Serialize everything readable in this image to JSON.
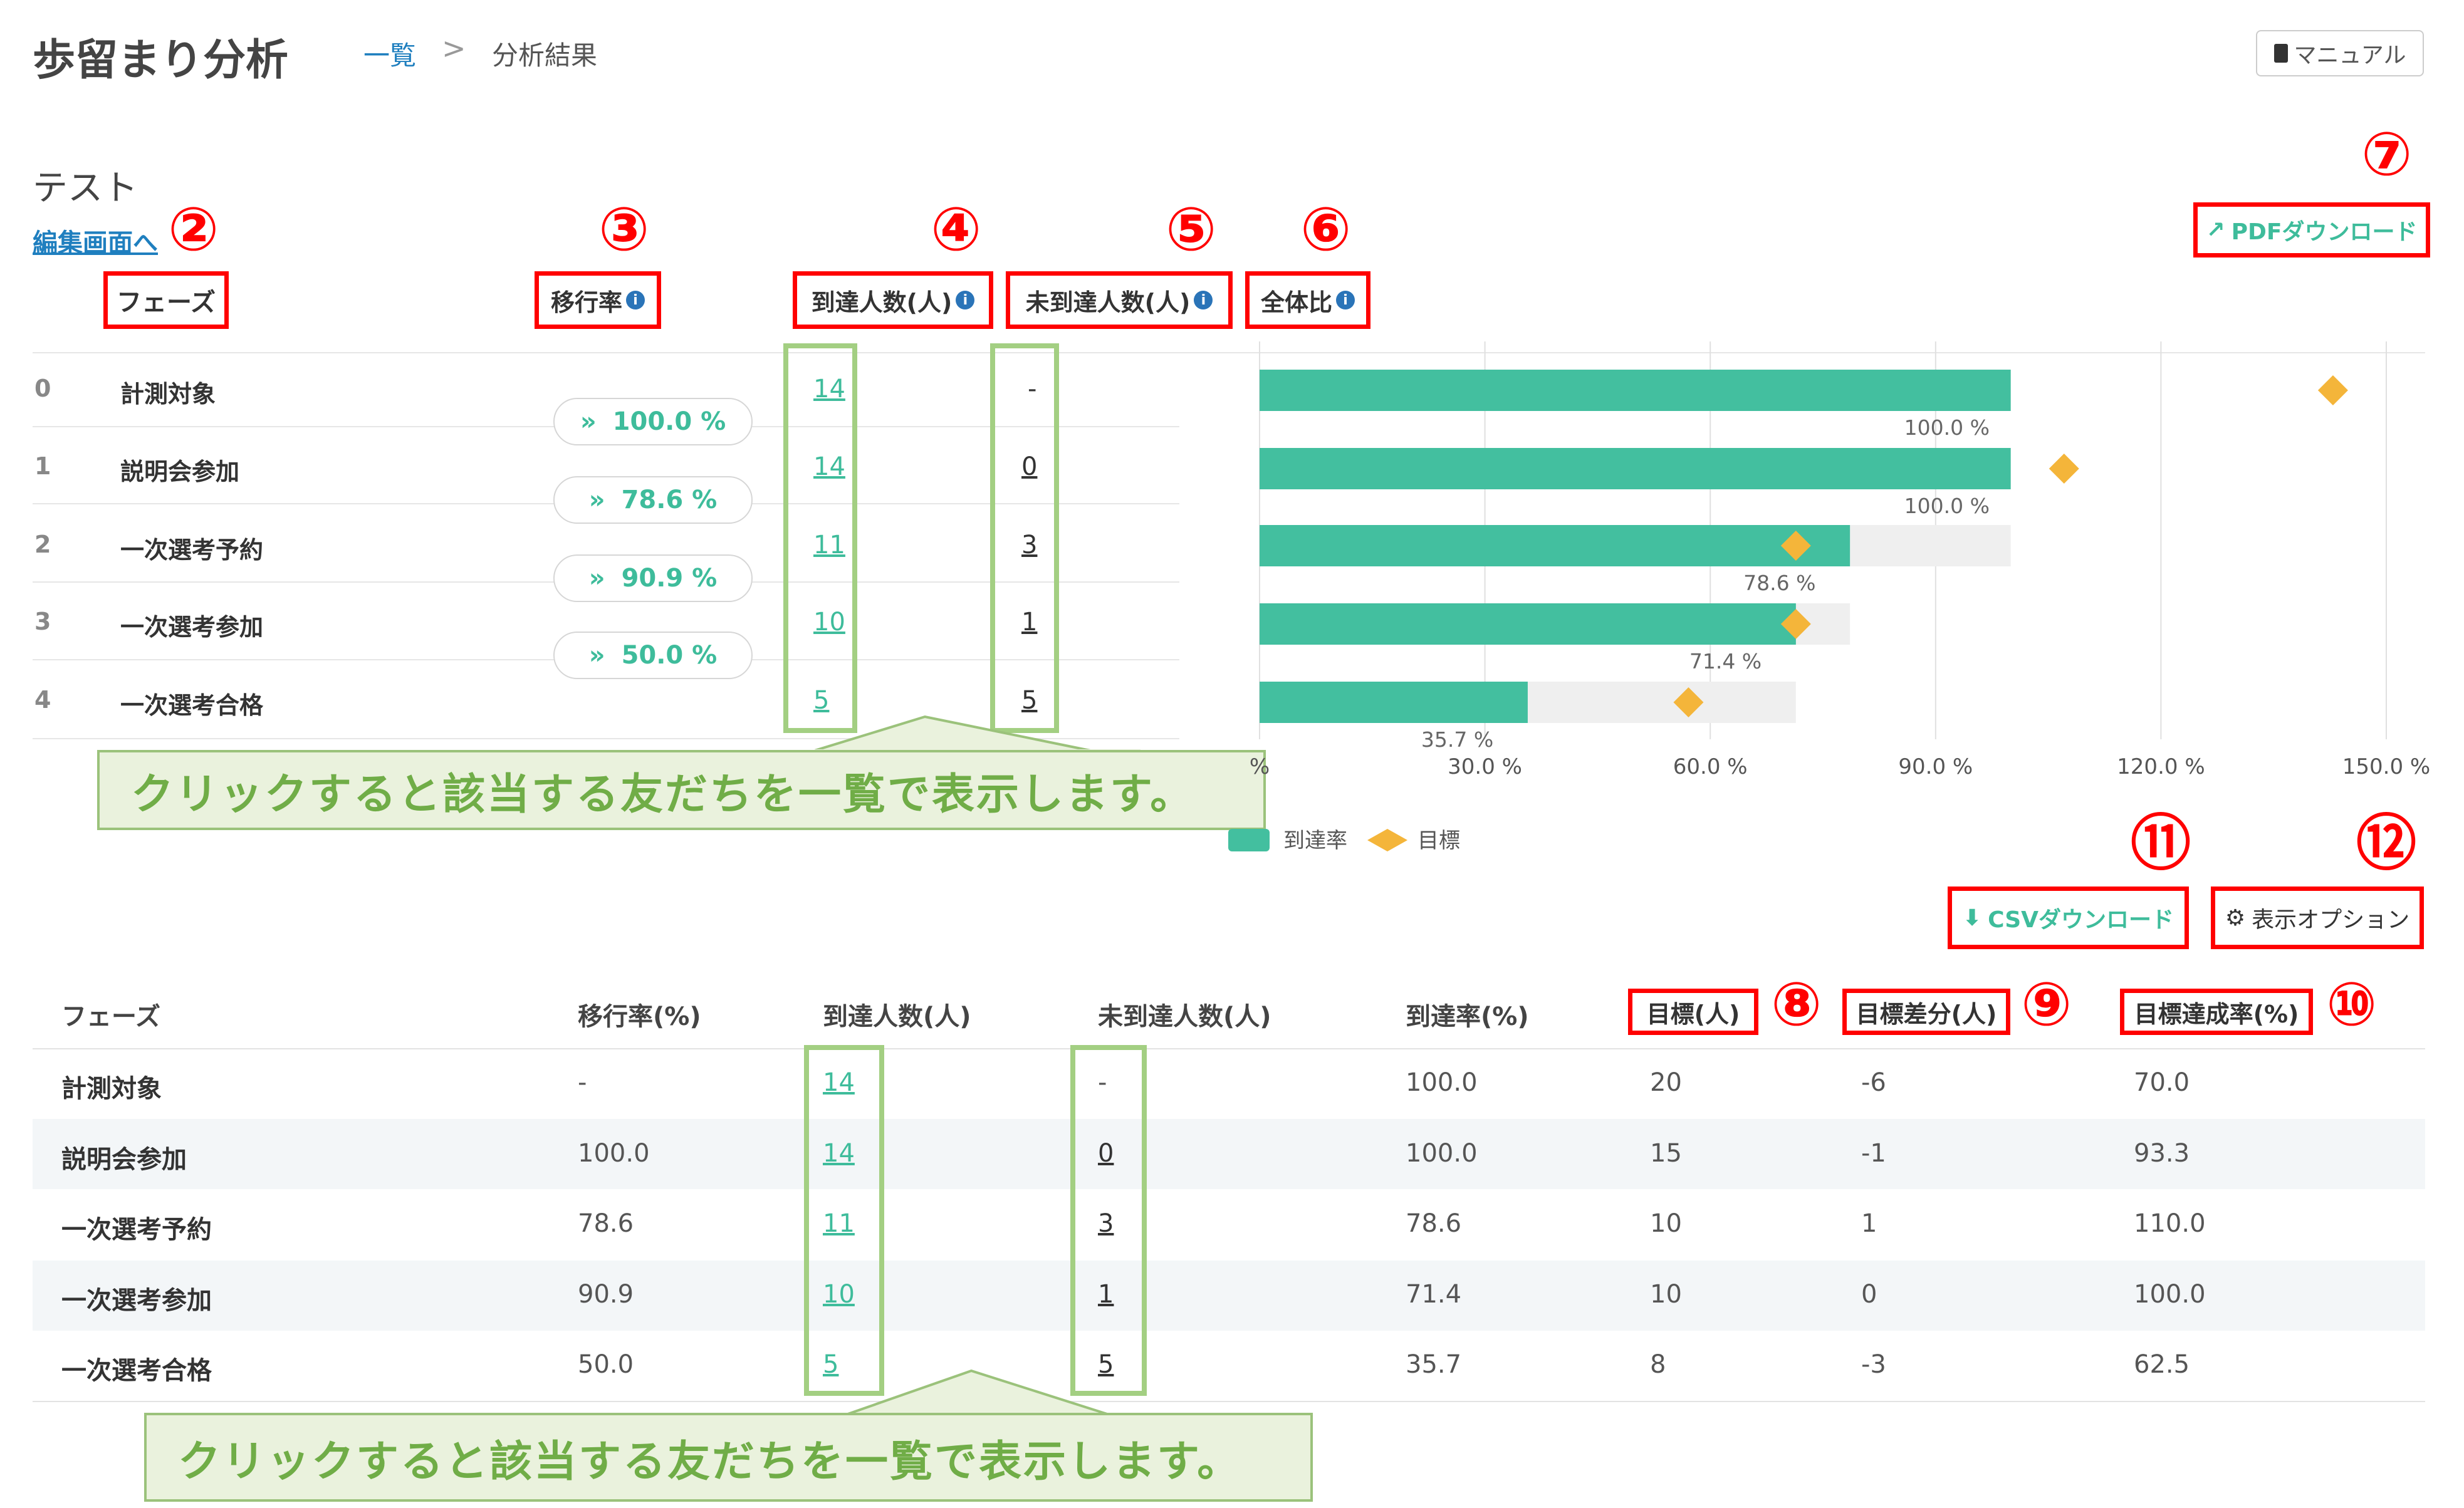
{
  "header": {
    "title": "歩留まり分析",
    "breadcrumb_link": "一覧",
    "breadcrumb_sep": ">",
    "breadcrumb_current": "分析結果",
    "manual_button": "マニュアル"
  },
  "report": {
    "name": "テスト",
    "edit_link": "編集画面へ"
  },
  "summary_headers": {
    "phase": "フェーズ",
    "transition": "移行率",
    "reached": "到達人数(人)",
    "not_reached": "未到達人数(人)",
    "ratio": "全体比"
  },
  "markers": [
    "②",
    "③",
    "④",
    "⑤",
    "⑥",
    "⑦",
    "⑧",
    "⑨",
    "⑩",
    "⑪",
    "⑫"
  ],
  "pdf_button": "PDFダウンロード",
  "phases": [
    {
      "idx": "0",
      "name": "計測対象",
      "reached": "14",
      "not_reached": "-",
      "pct_label": "100.0 %"
    },
    {
      "idx": "1",
      "name": "説明会参加",
      "reached": "14",
      "not_reached": "0",
      "pct_label": "100.0 %"
    },
    {
      "idx": "2",
      "name": "一次選考予約",
      "reached": "11",
      "not_reached": "3",
      "pct_label": "78.6 %"
    },
    {
      "idx": "3",
      "name": "一次選考参加",
      "reached": "10",
      "not_reached": "1",
      "pct_label": "71.4 %"
    },
    {
      "idx": "4",
      "name": "一次選考合格",
      "reached": "5",
      "not_reached": "5",
      "pct_label": "35.7 %"
    }
  ],
  "transitions": [
    "100.0 %",
    "78.6 %",
    "90.9 %",
    "50.0 %"
  ],
  "callout_text": "クリックすると該当する友だちを一覧で表示します。",
  "chart_data": {
    "type": "bar",
    "orientation": "horizontal",
    "categories": [
      "計測対象",
      "説明会参加",
      "一次選考予約",
      "一次選考参加",
      "一次選考合格"
    ],
    "series": [
      {
        "name": "到達率",
        "values": [
          100.0,
          100.0,
          78.6,
          71.4,
          35.7
        ],
        "color": "#43bf9f"
      },
      {
        "name": "目標",
        "values": [
          142.9,
          107.1,
          71.4,
          71.4,
          57.1
        ],
        "color": "#f4b53a",
        "marker": "diamond"
      }
    ],
    "xlim": [
      0,
      150
    ],
    "x_ticks": [
      "%",
      "30.0 %",
      "60.0 %",
      "90.0 %",
      "120.0 %",
      "150.0 %"
    ],
    "legend_position": "bottom"
  },
  "csv_button": "CSVダウンロード",
  "options_button": "表示オプション",
  "table": {
    "headers": [
      "フェーズ",
      "移行率(%)",
      "到達人数(人)",
      "未到達人数(人)",
      "到達率(%)",
      "目標(人)",
      "目標差分(人)",
      "目標達成率(%)"
    ],
    "rows": [
      [
        "計測対象",
        "-",
        "14",
        "-",
        "100.0",
        "20",
        "-6",
        "70.0"
      ],
      [
        "説明会参加",
        "100.0",
        "14",
        "0",
        "100.0",
        "15",
        "-1",
        "93.3"
      ],
      [
        "一次選考予約",
        "78.6",
        "11",
        "3",
        "78.6",
        "10",
        "1",
        "110.0"
      ],
      [
        "一次選考参加",
        "90.9",
        "10",
        "1",
        "71.4",
        "10",
        "0",
        "100.0"
      ],
      [
        "一次選考合格",
        "50.0",
        "5",
        "5",
        "35.7",
        "8",
        "-3",
        "62.5"
      ]
    ]
  }
}
